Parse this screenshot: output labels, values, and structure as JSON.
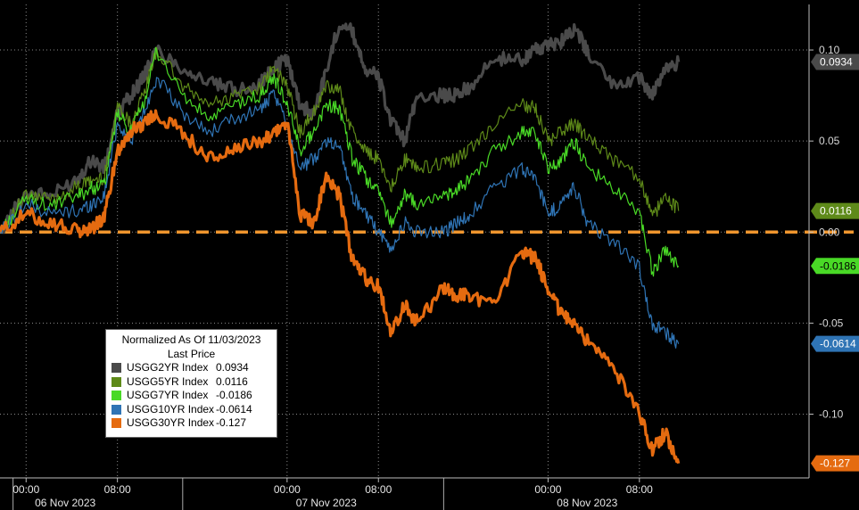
{
  "chart_data": {
    "type": "line",
    "title": "",
    "xlabel": "",
    "ylabel": "",
    "ylim": [
      -0.135,
      0.125
    ],
    "y_ticks": [
      0.1,
      0.05,
      0.0,
      -0.05,
      -0.1
    ],
    "y_tick_labels": [
      "0.10",
      "0.05",
      "0.00",
      "-0.05",
      "-0.10"
    ],
    "x_range_hours": [
      -2,
      60
    ],
    "x_ticks": [
      {
        "h": 0,
        "label": "00:00"
      },
      {
        "h": 7,
        "label": "08:00"
      },
      {
        "h": 20,
        "label": "00:00"
      },
      {
        "h": 27,
        "label": "08:00"
      },
      {
        "h": 40,
        "label": "00:00"
      },
      {
        "h": 47,
        "label": "08:00"
      }
    ],
    "x_day_labels": [
      {
        "h": 3,
        "label": "06 Nov 2023"
      },
      {
        "h": 23,
        "label": "07 Nov 2023"
      },
      {
        "h": 43,
        "label": "08 Nov 2023"
      }
    ],
    "day_separators": [
      -1,
      12,
      32
    ],
    "baseline": 0.0,
    "legend_position": "bottom-left",
    "legend": {
      "title1": "Normalized As Of 11/03/2023",
      "title2": "Last Price",
      "items": [
        {
          "name": "USGG2YR Index",
          "value": "0.0934",
          "color": "#4a4a4a"
        },
        {
          "name": "USGG5YR Index",
          "value": "0.0116",
          "color": "#5e8a19"
        },
        {
          "name": "USGG7YR Index",
          "value": "-0.0186",
          "color": "#49d926"
        },
        {
          "name": "USGG10YR Index",
          "value": "-0.0614",
          "color": "#2f74b5"
        },
        {
          "name": "USGG30YR Index",
          "value": "-0.127",
          "color": "#e56b10"
        }
      ]
    },
    "series": [
      {
        "name": "USGG2YR Index",
        "color": "#4a4a4a",
        "last_label": "0.0934",
        "width": 3.2,
        "x": [
          -2,
          0,
          2,
          4,
          5,
          6,
          7,
          8,
          9,
          10,
          12,
          14,
          16,
          18,
          19,
          20,
          21,
          22,
          23,
          24,
          25,
          26,
          27,
          28,
          29,
          30,
          32,
          33,
          34,
          36,
          38,
          39,
          40,
          41,
          42,
          43,
          45,
          47,
          48,
          49,
          50
        ],
        "y": [
          0.0,
          0.022,
          0.02,
          0.03,
          0.04,
          0.035,
          0.065,
          0.075,
          0.085,
          0.1,
          0.09,
          0.082,
          0.078,
          0.082,
          0.09,
          0.095,
          0.07,
          0.065,
          0.088,
          0.115,
          0.11,
          0.09,
          0.085,
          0.06,
          0.05,
          0.075,
          0.075,
          0.075,
          0.08,
          0.095,
          0.095,
          0.1,
          0.102,
          0.105,
          0.112,
          0.1,
          0.08,
          0.085,
          0.075,
          0.09,
          0.0934
        ]
      },
      {
        "name": "USGG5YR Index",
        "color": "#5e8a19",
        "last_label": "0.0116",
        "width": 1.2,
        "x": [
          -2,
          0,
          2,
          4,
          5,
          6,
          7,
          8,
          9,
          10,
          12,
          14,
          16,
          18,
          19,
          20,
          21,
          22,
          23,
          24,
          25,
          26,
          27,
          28,
          29,
          30,
          32,
          33,
          34,
          36,
          38,
          39,
          40,
          41,
          42,
          43,
          45,
          47,
          48,
          49,
          50
        ],
        "y": [
          0.0,
          0.02,
          0.018,
          0.025,
          0.028,
          0.03,
          0.07,
          0.06,
          0.075,
          0.1,
          0.08,
          0.07,
          0.075,
          0.08,
          0.09,
          0.08,
          0.055,
          0.065,
          0.08,
          0.078,
          0.055,
          0.045,
          0.04,
          0.025,
          0.04,
          0.035,
          0.038,
          0.04,
          0.045,
          0.06,
          0.07,
          0.068,
          0.05,
          0.055,
          0.06,
          0.052,
          0.04,
          0.03,
          0.008,
          0.02,
          0.0116
        ]
      },
      {
        "name": "USGG7YR Index",
        "color": "#49d926",
        "last_label": "-0.0186",
        "width": 1.2,
        "x": [
          -2,
          0,
          2,
          4,
          5,
          6,
          7,
          8,
          9,
          10,
          12,
          14,
          16,
          18,
          19,
          20,
          21,
          22,
          23,
          24,
          25,
          26,
          27,
          28,
          29,
          30,
          32,
          33,
          34,
          36,
          38,
          39,
          40,
          41,
          42,
          43,
          45,
          47,
          48,
          49,
          50
        ],
        "y": [
          0.0,
          0.018,
          0.014,
          0.02,
          0.024,
          0.026,
          0.065,
          0.055,
          0.07,
          0.1,
          0.075,
          0.062,
          0.07,
          0.075,
          0.085,
          0.07,
          0.045,
          0.055,
          0.07,
          0.068,
          0.04,
          0.03,
          0.022,
          0.005,
          0.02,
          0.015,
          0.02,
          0.022,
          0.03,
          0.045,
          0.055,
          0.055,
          0.035,
          0.04,
          0.05,
          0.035,
          0.025,
          0.01,
          -0.022,
          -0.01,
          -0.0186
        ]
      },
      {
        "name": "USGG10YR Index",
        "color": "#2f74b5",
        "last_label": "-0.0614",
        "width": 1.2,
        "x": [
          -2,
          0,
          2,
          4,
          5,
          6,
          7,
          8,
          9,
          10,
          12,
          14,
          16,
          18,
          19,
          20,
          21,
          22,
          23,
          24,
          25,
          26,
          27,
          28,
          29,
          30,
          32,
          33,
          34,
          36,
          38,
          39,
          40,
          41,
          42,
          43,
          45,
          47,
          48,
          49,
          50
        ],
        "y": [
          0.0,
          0.015,
          0.01,
          0.012,
          0.015,
          0.02,
          0.06,
          0.05,
          0.065,
          0.085,
          0.065,
          0.055,
          0.062,
          0.068,
          0.075,
          0.06,
          0.035,
          0.04,
          0.05,
          0.048,
          0.02,
          0.01,
          0.0,
          -0.01,
          0.005,
          0.0,
          0.0,
          0.005,
          0.01,
          0.025,
          0.035,
          0.03,
          0.01,
          0.015,
          0.025,
          0.005,
          -0.005,
          -0.02,
          -0.05,
          -0.055,
          -0.0614
        ]
      },
      {
        "name": "USGG30YR Index",
        "color": "#e56b10",
        "last_label": "-0.127",
        "width": 3.2,
        "x": [
          -2,
          0,
          2,
          4,
          5,
          6,
          7,
          8,
          9,
          10,
          12,
          14,
          16,
          18,
          19,
          20,
          21,
          22,
          23,
          24,
          25,
          26,
          27,
          28,
          29,
          30,
          32,
          33,
          34,
          36,
          38,
          39,
          40,
          41,
          42,
          43,
          45,
          47,
          48,
          49,
          50
        ],
        "y": [
          0.0,
          0.01,
          0.005,
          0.0,
          0.002,
          0.008,
          0.045,
          0.055,
          0.06,
          0.065,
          0.055,
          0.04,
          0.045,
          0.05,
          0.055,
          0.06,
          0.01,
          0.005,
          0.03,
          0.02,
          -0.015,
          -0.025,
          -0.03,
          -0.055,
          -0.04,
          -0.05,
          -0.03,
          -0.035,
          -0.035,
          -0.04,
          -0.01,
          -0.015,
          -0.03,
          -0.045,
          -0.05,
          -0.06,
          -0.075,
          -0.1,
          -0.12,
          -0.11,
          -0.127
        ]
      }
    ]
  }
}
